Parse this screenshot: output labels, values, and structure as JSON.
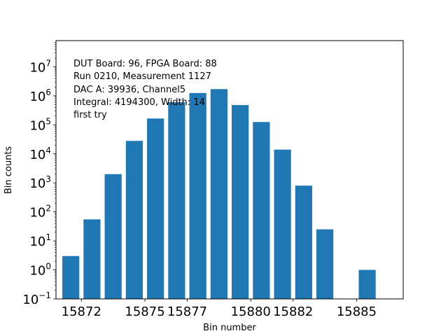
{
  "chart_data": {
    "type": "bar",
    "xlabel": "Bin number",
    "ylabel": "Bin counts",
    "yscale": "log",
    "ylim": [
      0.1,
      80000000
    ],
    "xlim": [
      15870.8,
      15887.2
    ],
    "grid": false,
    "bar_color": "#1f77b4",
    "x_ticks": [
      {
        "value": 15872,
        "label": "15872"
      },
      {
        "value": 15875,
        "label": "15875"
      },
      {
        "value": 15877,
        "label": "15877"
      },
      {
        "value": 15880,
        "label": "15880"
      },
      {
        "value": 15882,
        "label": "15882"
      },
      {
        "value": 15885,
        "label": "15885"
      }
    ],
    "y_ticks": [
      {
        "value": 0.1,
        "base": "10",
        "exp": "−1"
      },
      {
        "value": 1,
        "base": "10",
        "exp": "0"
      },
      {
        "value": 10,
        "base": "10",
        "exp": "1"
      },
      {
        "value": 100,
        "base": "10",
        "exp": "2"
      },
      {
        "value": 1000,
        "base": "10",
        "exp": "3"
      },
      {
        "value": 10000,
        "base": "10",
        "exp": "4"
      },
      {
        "value": 100000,
        "base": "10",
        "exp": "5"
      },
      {
        "value": 1000000,
        "base": "10",
        "exp": "6"
      },
      {
        "value": 10000000,
        "base": "10",
        "exp": "7"
      }
    ],
    "bars": [
      {
        "x": 15871.5,
        "y": 3
      },
      {
        "x": 15872.5,
        "y": 55
      },
      {
        "x": 15873.5,
        "y": 2000
      },
      {
        "x": 15874.5,
        "y": 28000
      },
      {
        "x": 15875.5,
        "y": 165000
      },
      {
        "x": 15876.5,
        "y": 600000
      },
      {
        "x": 15877.5,
        "y": 1250000
      },
      {
        "x": 15878.5,
        "y": 1700000
      },
      {
        "x": 15879.5,
        "y": 480000
      },
      {
        "x": 15880.5,
        "y": 125000
      },
      {
        "x": 15881.5,
        "y": 14000
      },
      {
        "x": 15882.5,
        "y": 800
      },
      {
        "x": 15883.5,
        "y": 25
      },
      {
        "x": 15885.5,
        "y": 1
      }
    ],
    "bar_width": 0.8,
    "annotation_lines": [
      "DUT Board: 96, FPGA Board: 88",
      "Run 0210, Measurement 1127",
      "DAC A: 39936, Channel5",
      "Integral: 4194300, Width: 14",
      "first try"
    ]
  }
}
